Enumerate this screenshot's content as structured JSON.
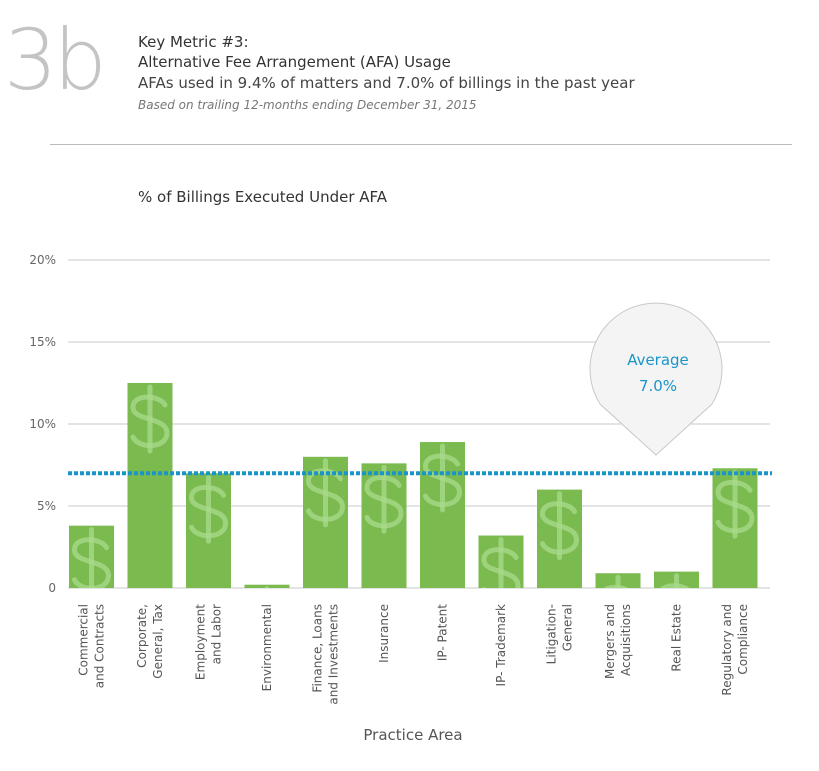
{
  "header": {
    "badge": "3b",
    "title_line1": "Key Metric #3:",
    "title_line2": "Alternative Fee Arrangement (AFA) Usage",
    "summary": "AFAs used in 9.4% of matters and 7.0% of billings in the past year",
    "note": "Based on trailing 12-months ending December 31, 2015"
  },
  "chart_data": {
    "type": "bar",
    "title": "% of Billings Executed Under AFA",
    "xlabel": "Practice Area",
    "ylabel": "",
    "ylim": [
      0,
      20
    ],
    "yticks": [
      0,
      5,
      10,
      15,
      20
    ],
    "ytick_labels": [
      "0",
      "5%",
      "10%",
      "15%",
      "20%"
    ],
    "grid": true,
    "categories": [
      [
        "Commercial",
        "and Contracts"
      ],
      [
        "Corporate,",
        "General, Tax"
      ],
      [
        "Employment",
        "and Labor"
      ],
      [
        "Environmental"
      ],
      [
        "Finance, Loans",
        "and Investments"
      ],
      [
        "Insurance"
      ],
      [
        "IP- Patent"
      ],
      [
        "IP- Trademark"
      ],
      [
        "Litigation-",
        "General"
      ],
      [
        "Mergers and",
        "Acquisitions"
      ],
      [
        "Real Estate"
      ],
      [
        "Regulatory and",
        "Compliance"
      ]
    ],
    "values": [
      3.8,
      12.5,
      7.0,
      0.2,
      8.0,
      7.6,
      8.9,
      3.2,
      6.0,
      0.9,
      1.0,
      7.3
    ],
    "bar_color": "#7aba4f",
    "bar_icon": "dollar-sign-icon",
    "average": {
      "value": 7.0,
      "label": "Average",
      "value_label": "7.0%",
      "color": "#1a95c9"
    }
  }
}
